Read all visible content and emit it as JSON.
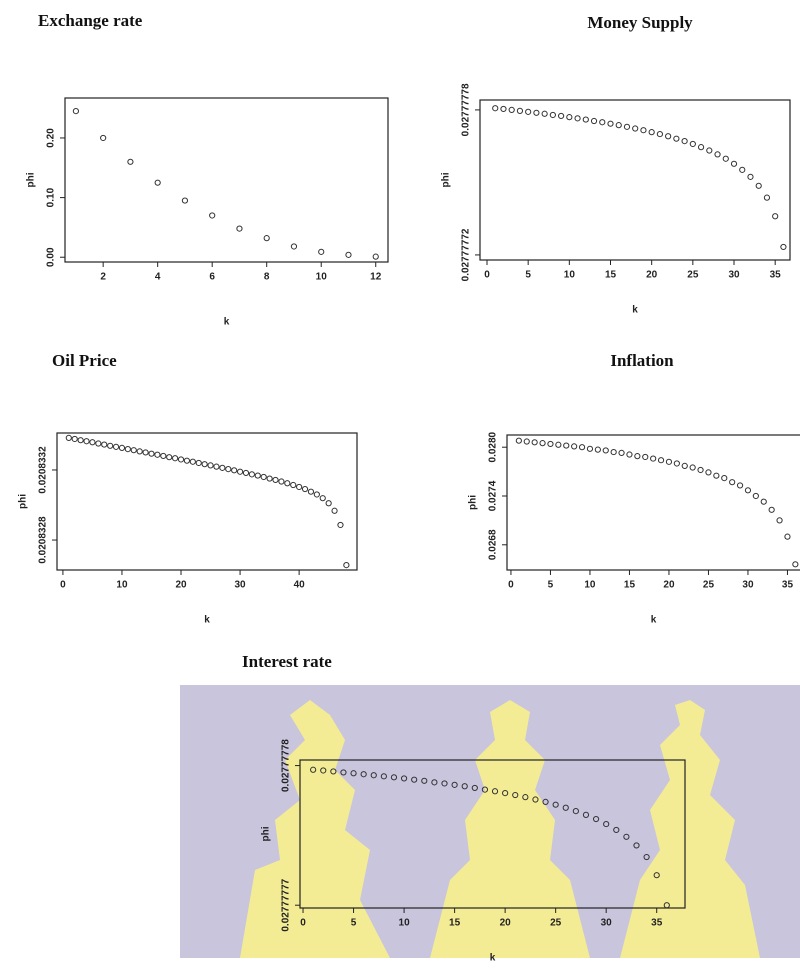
{
  "chart_data": [
    {
      "type": "scatter",
      "title": "Exchange rate",
      "x_label": "k",
      "y_label": "phi",
      "x": [
        1,
        2,
        3,
        4,
        5,
        6,
        7,
        8,
        9,
        10,
        11,
        12
      ],
      "values": [
        0.245,
        0.2,
        0.16,
        0.125,
        0.095,
        0.07,
        0.048,
        0.032,
        0.018,
        0.009,
        0.004,
        0.001
      ],
      "xlim": [
        0.6,
        12.45
      ],
      "ylim": [
        -0.008,
        0.267
      ],
      "xticks": [
        2,
        4,
        6,
        8,
        10,
        12
      ],
      "yticks": [
        {
          "value": 0,
          "label": "0.00"
        },
        {
          "value": 0.1,
          "label": "0.10"
        },
        {
          "value": 0.2,
          "label": "0.20"
        }
      ]
    },
    {
      "type": "scatter",
      "title": "Money Supply",
      "x_label": "k",
      "y_label": "phi",
      "x": [
        1,
        2,
        3,
        4,
        5,
        6,
        7,
        8,
        9,
        10,
        11,
        12,
        13,
        14,
        15,
        16,
        17,
        18,
        19,
        20,
        21,
        22,
        23,
        24,
        25,
        26,
        27,
        28,
        29,
        30,
        31,
        32,
        33,
        34,
        35,
        36
      ],
      "values": [
        0.0277777807,
        0.0277777804,
        0.02777778,
        0.0277777796,
        0.0277777792,
        0.0277777788,
        0.0277777784,
        0.0277777779,
        0.0277777775,
        0.027777777,
        0.0277777765,
        0.027777776,
        0.0277777754,
        0.0277777749,
        0.0277777743,
        0.0277777737,
        0.027777773,
        0.0277777723,
        0.0277777716,
        0.0277777708,
        0.02777777,
        0.0277777691,
        0.0277777681,
        0.0277777671,
        0.0277777659,
        0.0277777646,
        0.0277777632,
        0.0277777616,
        0.0277777598,
        0.0277777577,
        0.0277777552,
        0.0277777523,
        0.0277777486,
        0.0277777437,
        0.027777736,
        0.0277777233
      ],
      "xlim": [
        -0.85,
        36.8
      ],
      "ylim": [
        0.0277777179,
        0.0277777841
      ],
      "xticks": [
        0,
        5,
        10,
        15,
        20,
        25,
        30,
        35
      ],
      "yticks": [
        0.02777772,
        0.02777778
      ]
    },
    {
      "type": "scatter",
      "title": "Oil Price",
      "x_label": "k",
      "y_label": "phi",
      "x": [
        1,
        2,
        3,
        4,
        5,
        6,
        7,
        8,
        9,
        10,
        11,
        12,
        13,
        14,
        15,
        16,
        17,
        18,
        19,
        20,
        21,
        22,
        23,
        24,
        25,
        26,
        27,
        28,
        29,
        30,
        31,
        32,
        33,
        34,
        35,
        36,
        37,
        38,
        39,
        40,
        41,
        42,
        43,
        44,
        45,
        46,
        47,
        48
      ],
      "values": [
        0.020833383,
        0.020833377,
        0.02083337,
        0.020833364,
        0.020833358,
        0.020833351,
        0.020833345,
        0.020833338,
        0.020833332,
        0.020833326,
        0.020833319,
        0.020833313,
        0.020833306,
        0.0208333,
        0.020833293,
        0.020833287,
        0.02083328,
        0.020833273,
        0.020833267,
        0.02083326,
        0.020833253,
        0.020833247,
        0.02083324,
        0.020833233,
        0.020833226,
        0.020833219,
        0.020833212,
        0.020833205,
        0.020833198,
        0.02083319,
        0.020833183,
        0.020833175,
        0.020833168,
        0.02083316,
        0.020833151,
        0.020833143,
        0.020833134,
        0.020833124,
        0.020833114,
        0.020833103,
        0.020833091,
        0.020833076,
        0.02083306,
        0.020833039,
        0.02083301,
        0.020832967,
        0.020832886,
        0.020832657
      ],
      "xlim": [
        -1.0,
        49.8
      ],
      "ylim": [
        0.020832629,
        0.020833411
      ],
      "xticks": [
        0,
        10,
        20,
        30,
        40
      ],
      "yticks": [
        0.0208328,
        0.0208332
      ]
    },
    {
      "type": "scatter",
      "title": "Inflation",
      "x_label": "k",
      "y_label": "phi",
      "x": [
        1,
        2,
        3,
        4,
        5,
        6,
        7,
        8,
        9,
        10,
        11,
        12,
        13,
        14,
        15,
        16,
        17,
        18,
        19,
        20,
        21,
        22,
        23,
        24,
        25,
        26,
        27,
        28,
        29,
        30,
        31,
        32,
        33,
        34,
        35,
        36
      ],
      "values": [
        0.02808,
        0.02807,
        0.02806,
        0.02805,
        0.02804,
        0.02803,
        0.02802,
        0.02801,
        0.028,
        0.02798,
        0.02797,
        0.02796,
        0.02794,
        0.02793,
        0.02791,
        0.02789,
        0.02788,
        0.02786,
        0.02784,
        0.02782,
        0.0278,
        0.02777,
        0.02775,
        0.02772,
        0.02769,
        0.02765,
        0.02762,
        0.02757,
        0.02753,
        0.02747,
        0.0274,
        0.02733,
        0.02723,
        0.0271,
        0.0269,
        0.02656
      ],
      "xlim": [
        -0.5,
        37.6
      ],
      "ylim": [
        0.02649,
        0.02815
      ],
      "xticks": [
        0,
        5,
        10,
        15,
        20,
        25,
        30,
        35
      ],
      "yticks": [
        0.0268,
        0.0274,
        {
          "value": 0.028,
          "label": "0.0280"
        }
      ]
    },
    {
      "type": "scatter",
      "title": "Interest rate",
      "x_label": "k",
      "y_label": "phi",
      "x": [
        1,
        2,
        3,
        4,
        5,
        6,
        7,
        8,
        9,
        10,
        11,
        12,
        13,
        14,
        15,
        16,
        17,
        18,
        19,
        20,
        21,
        22,
        23,
        24,
        25,
        26,
        27,
        28,
        29,
        30,
        31,
        32,
        33,
        34,
        35,
        36
      ],
      "values": [
        0.0277777797,
        0.02777777965,
        0.02777777958,
        0.02777777951,
        0.02777777945,
        0.02777777938,
        0.02777777931,
        0.02777777923,
        0.02777777916,
        0.02777777908,
        0.02777777899,
        0.02777777891,
        0.0277777788,
        0.02777777872,
        0.02777777862,
        0.02777777852,
        0.0277777784,
        0.02777777828,
        0.02777777816,
        0.02777777803,
        0.02777777789,
        0.02777777774,
        0.02777777757,
        0.0277777774,
        0.0277777772,
        0.02777777698,
        0.02777777674,
        0.02777777647,
        0.02777777617,
        0.02777777581,
        0.02777777539,
        0.0277777749,
        0.02777777428,
        0.02777777345,
        0.02777777215,
        0.02777777
      ],
      "xlim": [
        -0.3,
        37.8
      ],
      "ylim": [
        0.0277777698,
        0.0277777804
      ],
      "xticks": [
        0,
        5,
        10,
        15,
        20,
        25,
        30,
        35
      ],
      "yticks": [
        0.02777777,
        0.02777778
      ]
    }
  ]
}
